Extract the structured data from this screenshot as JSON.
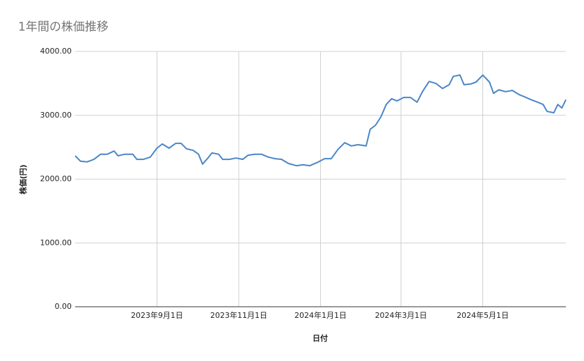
{
  "chart_data": {
    "type": "line",
    "title": "1年間の株価推移",
    "x_label": "日付",
    "y_label": "株価(円)",
    "x": [
      "2023-07-02",
      "2023-07-06",
      "2023-07-11",
      "2023-07-16",
      "2023-07-21",
      "2023-07-26",
      "2023-07-31",
      "2023-08-03",
      "2023-08-08",
      "2023-08-14",
      "2023-08-17",
      "2023-08-22",
      "2023-08-27",
      "2023-09-01",
      "2023-09-05",
      "2023-09-10",
      "2023-09-15",
      "2023-09-19",
      "2023-09-23",
      "2023-09-28",
      "2023-10-02",
      "2023-10-05",
      "2023-10-09",
      "2023-10-12",
      "2023-10-17",
      "2023-10-20",
      "2023-10-25",
      "2023-10-30",
      "2023-11-04",
      "2023-11-08",
      "2023-11-13",
      "2023-11-18",
      "2023-11-23",
      "2023-11-28",
      "2023-12-03",
      "2023-12-08",
      "2023-12-14",
      "2023-12-19",
      "2023-12-24",
      "2023-12-29",
      "2024-01-04",
      "2024-01-09",
      "2024-01-14",
      "2024-01-19",
      "2024-01-24",
      "2024-01-29",
      "2024-02-04",
      "2024-02-07",
      "2024-02-11",
      "2024-02-15",
      "2024-02-19",
      "2024-02-23",
      "2024-02-27",
      "2024-03-03",
      "2024-03-08",
      "2024-03-13",
      "2024-03-17",
      "2024-03-22",
      "2024-03-27",
      "2024-04-01",
      "2024-04-06",
      "2024-04-09",
      "2024-04-14",
      "2024-04-17",
      "2024-04-22",
      "2024-04-26",
      "2024-05-01",
      "2024-05-06",
      "2024-05-09",
      "2024-05-13",
      "2024-05-18",
      "2024-05-23",
      "2024-05-28",
      "2024-06-01",
      "2024-06-06",
      "2024-06-11",
      "2024-06-15",
      "2024-06-18",
      "2024-06-23",
      "2024-06-26",
      "2024-06-29",
      "2024-07-02"
    ],
    "values": [
      2365,
      2280,
      2270,
      2310,
      2390,
      2390,
      2440,
      2365,
      2390,
      2390,
      2310,
      2310,
      2345,
      2485,
      2550,
      2485,
      2560,
      2560,
      2475,
      2450,
      2390,
      2235,
      2330,
      2410,
      2390,
      2310,
      2310,
      2330,
      2310,
      2375,
      2390,
      2390,
      2345,
      2320,
      2310,
      2245,
      2210,
      2225,
      2210,
      2255,
      2320,
      2320,
      2465,
      2570,
      2520,
      2540,
      2520,
      2780,
      2845,
      2975,
      3170,
      3260,
      3225,
      3280,
      3280,
      3205,
      3370,
      3530,
      3500,
      3420,
      3480,
      3610,
      3630,
      3480,
      3490,
      3520,
      3630,
      3520,
      3345,
      3400,
      3370,
      3390,
      3325,
      3290,
      3245,
      3205,
      3170,
      3060,
      3040,
      3170,
      3115,
      3245
    ],
    "color": "#4a86c8",
    "xlim": [
      "2023-07-02",
      "2024-07-02"
    ],
    "xticks": [
      {
        "value": "2023-09-01",
        "label": "2023年9月1日"
      },
      {
        "value": "2023-11-01",
        "label": "2023年11月1日"
      },
      {
        "value": "2024-01-01",
        "label": "2024年1月1日"
      },
      {
        "value": "2024-03-01",
        "label": "2024年3月1日"
      },
      {
        "value": "2024-05-01",
        "label": "2024年5月1日"
      }
    ],
    "ylim": [
      0,
      4000
    ],
    "yticks": [
      {
        "value": 0,
        "label": "0.00"
      },
      {
        "value": 1000,
        "label": "1000.00"
      },
      {
        "value": 2000,
        "label": "2000.00"
      },
      {
        "value": 3000,
        "label": "3000.00"
      },
      {
        "value": 4000,
        "label": "4000.00"
      }
    ],
    "grid": true
  }
}
